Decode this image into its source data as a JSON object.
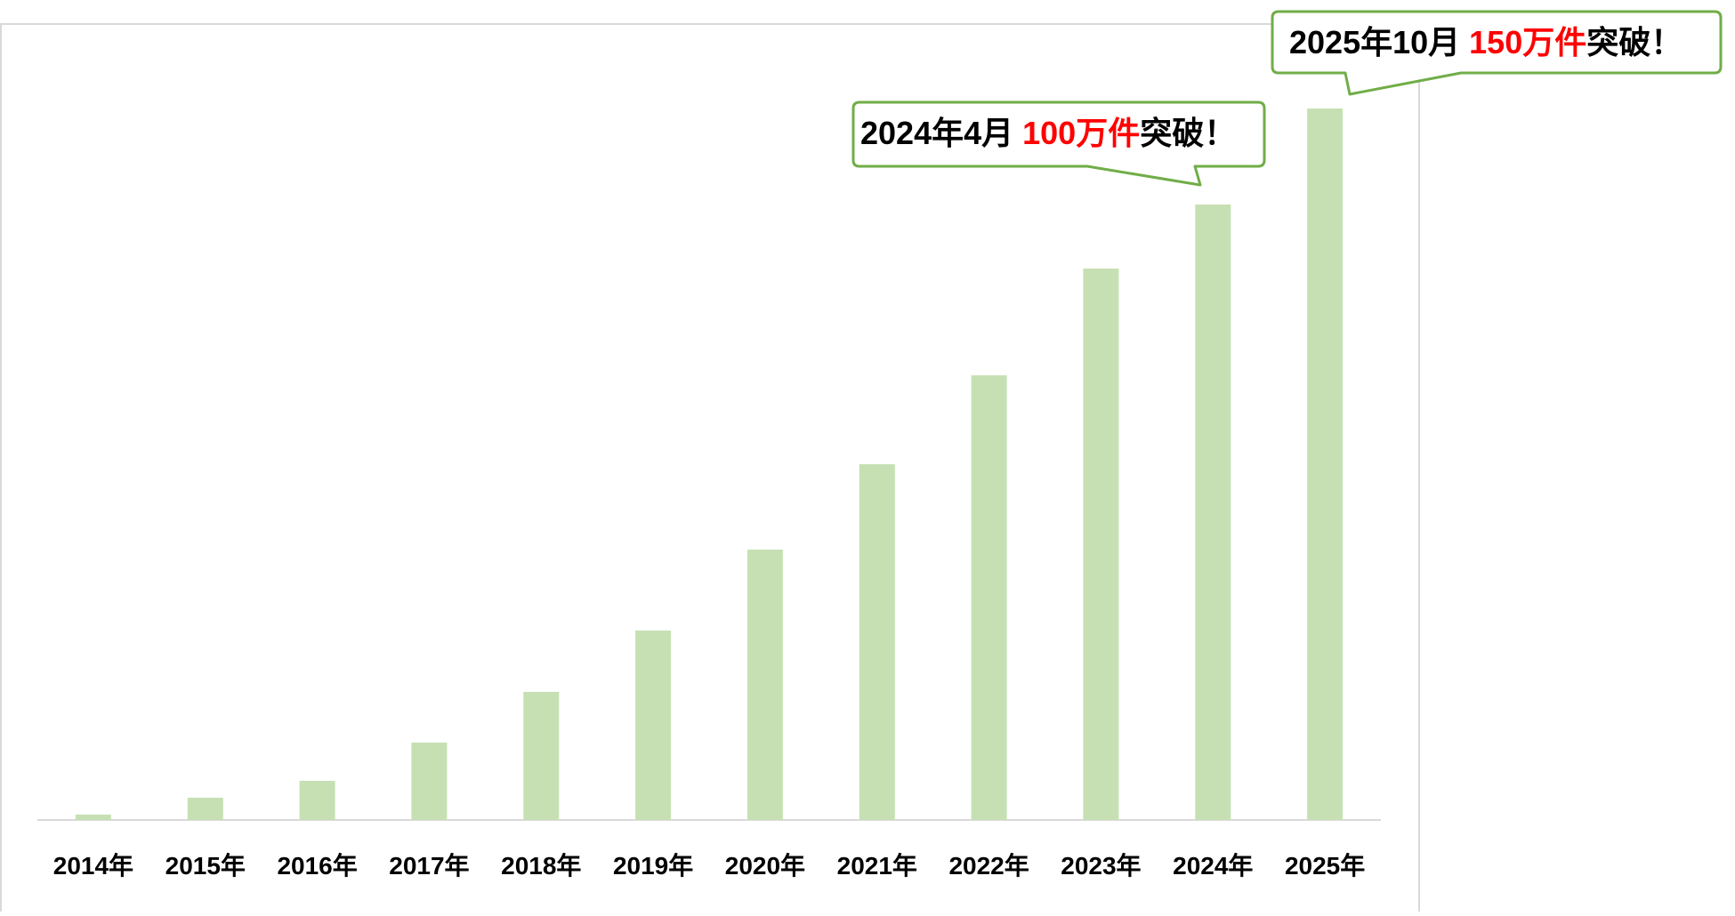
{
  "chart_data": {
    "type": "bar",
    "categories": [
      "2014年",
      "2015年",
      "2016年",
      "2017年",
      "2018年",
      "2019年",
      "2020年",
      "2021年",
      "2022年",
      "2023年",
      "2024年",
      "2025年"
    ],
    "values": [
      0.6,
      2.5,
      4.4,
      8.7,
      14.4,
      21.3,
      30.4,
      40.0,
      50.0,
      62.0,
      69.2,
      80.0
    ],
    "title": "",
    "xlabel": "",
    "ylabel": "",
    "ylim": [
      0,
      80
    ],
    "grid": false,
    "bar_color": "#c6e0b4",
    "annotations": [
      {
        "category": "2024年",
        "prefix": "2024年4月",
        "highlight": "100万件",
        "suffix": "突破！",
        "highlight_color": "#ff0000",
        "border_color": "#70ad47"
      },
      {
        "category": "2025年",
        "prefix": "2025年10月",
        "highlight": "150万件",
        "suffix": "突破！",
        "highlight_color": "#ff0000",
        "border_color": "#70ad47"
      }
    ]
  }
}
